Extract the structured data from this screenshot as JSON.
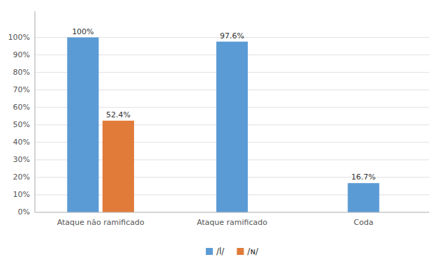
{
  "chart_data": {
    "type": "bar",
    "categories": [
      "Ataque não ramificado",
      "Ataque ramificado",
      "Coda"
    ],
    "series": [
      {
        "name": "/l/",
        "color": "#5b9bd5",
        "values": [
          100.0,
          97.6,
          16.7
        ],
        "value_labels": [
          "100%",
          "97.6%",
          "16.7%"
        ]
      },
      {
        "name": "/ɴ/",
        "color": "#e07b39",
        "values": [
          52.4,
          null,
          null
        ],
        "value_labels": [
          "52.4%",
          null,
          null
        ]
      }
    ],
    "ylim": [
      0,
      115
    ],
    "yticks": [
      {
        "value": 0,
        "label": "0%"
      },
      {
        "value": 10,
        "label": "10%"
      },
      {
        "value": 20,
        "label": "20%"
      },
      {
        "value": 30,
        "label": "30%"
      },
      {
        "value": 40,
        "label": "40%"
      },
      {
        "value": 50,
        "label": "50%"
      },
      {
        "value": 60,
        "label": "60%"
      },
      {
        "value": 70,
        "label": "70%"
      },
      {
        "value": 80,
        "label": "80%"
      },
      {
        "value": 90,
        "label": "90%"
      },
      {
        "value": 100,
        "label": "100%"
      }
    ],
    "grid": true,
    "data_labels": true,
    "legend": "bottom"
  }
}
